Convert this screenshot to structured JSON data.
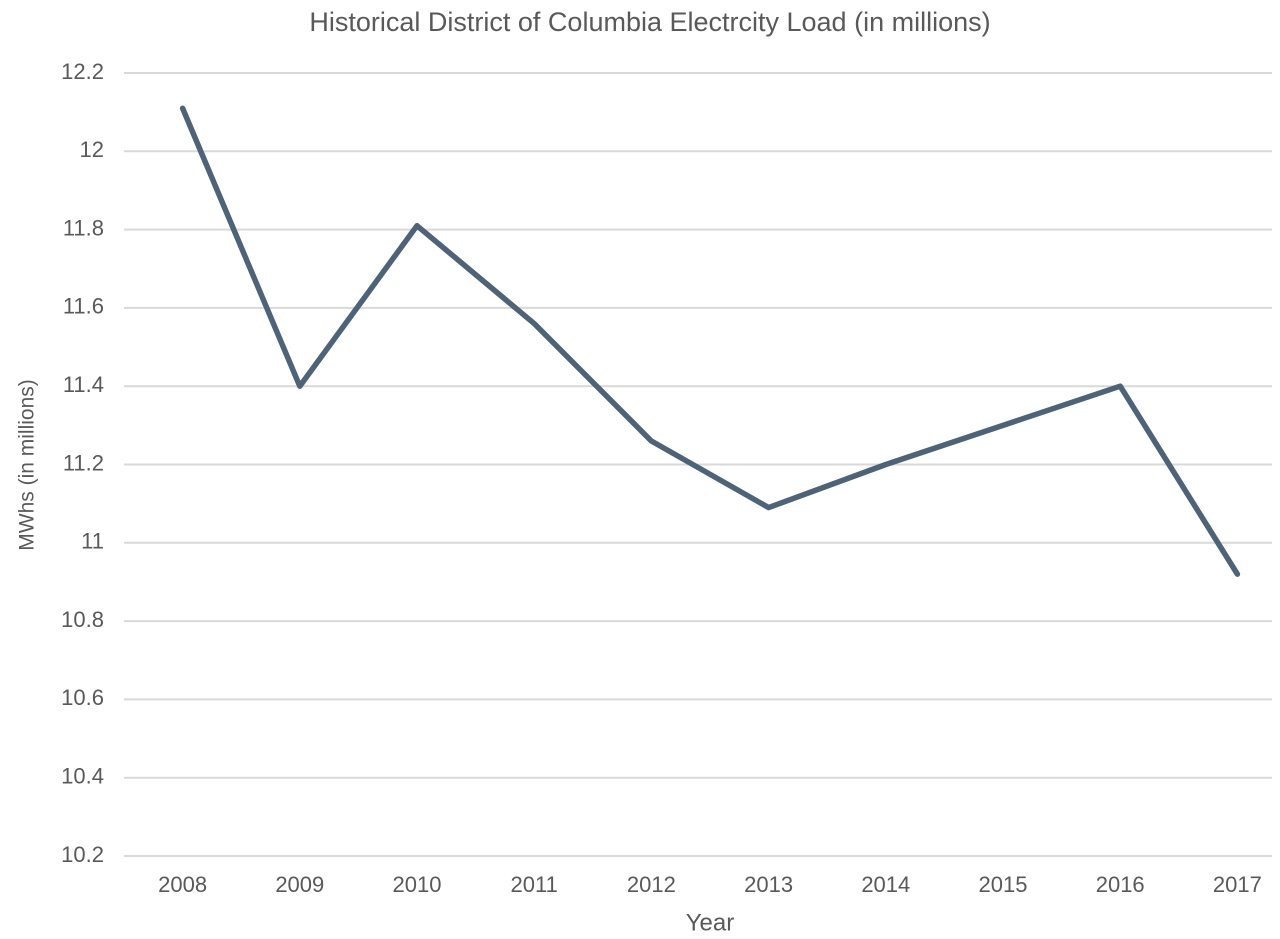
{
  "chart_data": {
    "type": "line",
    "title": "Historical District of Columbia Electrcity Load (in millions)",
    "x_label": "Year",
    "y_label": "MWhs (in millions)",
    "categories": [
      "2008",
      "2009",
      "2010",
      "2011",
      "2012",
      "2013",
      "2014",
      "2015",
      "2016",
      "2017"
    ],
    "series": [
      {
        "name": "Load",
        "color": "#4e6378",
        "values": [
          12.11,
          11.4,
          11.81,
          11.56,
          11.26,
          11.09,
          11.2,
          11.3,
          11.4,
          10.92
        ]
      }
    ],
    "ylim": [
      10.2,
      12.2
    ],
    "yticks": [
      10.2,
      10.4,
      10.6,
      10.8,
      11,
      11.2,
      11.4,
      11.6,
      11.8,
      12,
      12.2
    ],
    "grid": true
  }
}
